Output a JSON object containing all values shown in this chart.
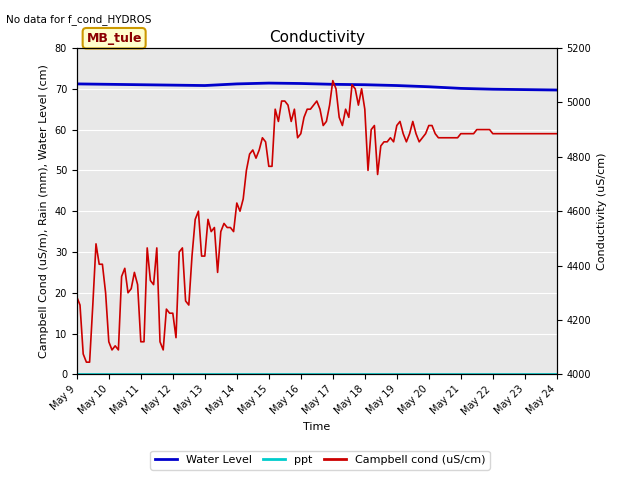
{
  "title": "Conductivity",
  "top_left_text": "No data for f_cond_HYDROS",
  "ylabel_left": "Campbell Cond (uS/m), Rain (mm), Water Level (cm)",
  "ylabel_right": "Conductivity (uS/cm)",
  "xlabel": "Time",
  "ylim_left": [
    0,
    80
  ],
  "ylim_right": [
    4000,
    5200
  ],
  "background_color": "#e8e8e8",
  "legend_box_text": "MB_tule",
  "legend_box_bg": "#ffffcc",
  "legend_box_border": "#cc9900",
  "x_ticks": [
    "May 9",
    "May 10",
    "May 11",
    "May 12",
    "May 13",
    "May 14",
    "May 15",
    "May 16",
    "May 17",
    "May 18",
    "May 19",
    "May 20",
    "May 21",
    "May 22",
    "May 23",
    "May 24"
  ],
  "water_level_color": "#0000cc",
  "ppt_color": "#00cccc",
  "campbell_cond_color": "#cc0000",
  "water_level_data_x": [
    0,
    1,
    2,
    3,
    4,
    5,
    6,
    7,
    8,
    9,
    10,
    11,
    12,
    13,
    14,
    15
  ],
  "water_level_data_y": [
    71.2,
    71.1,
    71.0,
    70.9,
    70.8,
    71.2,
    71.4,
    71.3,
    71.1,
    71.0,
    70.8,
    70.5,
    70.1,
    69.9,
    69.8,
    69.7
  ],
  "ppt_data_x": [
    0,
    1,
    2,
    3,
    4,
    5,
    6,
    7,
    8,
    9,
    10,
    11,
    12,
    13,
    14,
    15
  ],
  "ppt_data_y": [
    0,
    0,
    0,
    0,
    0,
    0,
    0,
    0,
    0,
    0,
    0,
    0,
    0,
    0,
    0,
    0
  ],
  "campbell_cond_x": [
    0.0,
    0.1,
    0.2,
    0.3,
    0.4,
    0.5,
    0.6,
    0.7,
    0.8,
    0.9,
    1.0,
    1.1,
    1.2,
    1.3,
    1.4,
    1.5,
    1.6,
    1.7,
    1.8,
    1.9,
    2.0,
    2.1,
    2.2,
    2.3,
    2.4,
    2.5,
    2.6,
    2.7,
    2.8,
    2.9,
    3.0,
    3.1,
    3.2,
    3.3,
    3.4,
    3.5,
    3.6,
    3.7,
    3.8,
    3.9,
    4.0,
    4.1,
    4.2,
    4.3,
    4.4,
    4.5,
    4.6,
    4.7,
    4.8,
    4.9,
    5.0,
    5.1,
    5.2,
    5.3,
    5.4,
    5.5,
    5.6,
    5.7,
    5.8,
    5.9,
    6.0,
    6.1,
    6.2,
    6.3,
    6.4,
    6.5,
    6.6,
    6.7,
    6.8,
    6.9,
    7.0,
    7.1,
    7.2,
    7.3,
    7.4,
    7.5,
    7.6,
    7.7,
    7.8,
    7.9,
    8.0,
    8.1,
    8.2,
    8.3,
    8.4,
    8.5,
    8.6,
    8.7,
    8.8,
    8.9,
    9.0,
    9.1,
    9.2,
    9.3,
    9.4,
    9.5,
    9.6,
    9.7,
    9.8,
    9.9,
    10.0,
    10.1,
    10.2,
    10.3,
    10.4,
    10.5,
    10.6,
    10.7,
    10.8,
    10.9,
    11.0,
    11.1,
    11.2,
    11.3,
    11.4,
    11.5,
    11.6,
    11.7,
    11.8,
    11.9,
    12.0,
    12.1,
    12.2,
    12.3,
    12.4,
    12.5,
    12.6,
    12.7,
    12.8,
    12.9,
    13.0,
    13.1,
    13.2,
    13.3,
    13.4,
    13.5,
    13.6,
    13.7,
    13.8,
    13.9,
    14.0,
    14.1,
    14.2,
    14.3,
    14.4,
    14.5,
    14.6,
    14.7,
    14.8,
    14.9,
    15.0
  ],
  "campbell_cond_y": [
    19,
    17,
    5,
    3,
    3,
    17,
    32,
    27,
    27,
    20,
    8,
    6,
    7,
    6,
    24,
    26,
    20,
    21,
    25,
    22,
    8,
    8,
    31,
    23,
    22,
    31,
    8,
    6,
    16,
    15,
    15,
    9,
    30,
    31,
    18,
    17,
    29,
    38,
    40,
    29,
    29,
    38,
    35,
    36,
    25,
    35,
    37,
    36,
    36,
    35,
    42,
    40,
    43,
    50,
    54,
    55,
    53,
    55,
    58,
    57,
    51,
    51,
    65,
    62,
    67,
    67,
    66,
    62,
    65,
    58,
    59,
    63,
    65,
    65,
    66,
    67,
    65,
    61,
    62,
    66,
    72,
    70,
    63,
    61,
    65,
    63,
    71,
    70,
    66,
    70,
    65,
    50,
    60,
    61,
    49,
    56,
    57,
    57,
    58,
    57,
    61,
    62,
    59,
    57,
    59,
    62,
    59,
    57,
    58,
    59,
    61,
    61,
    59,
    58,
    58,
    58,
    58,
    58,
    58,
    58,
    59,
    59,
    59,
    59,
    59,
    60,
    60,
    60,
    60,
    60,
    59,
    59,
    59,
    59,
    59,
    59,
    59,
    59,
    59,
    59,
    59,
    59,
    59,
    59,
    59,
    59,
    59,
    59,
    59,
    59,
    59
  ],
  "title_fontsize": 11,
  "axis_fontsize": 8,
  "tick_fontsize": 7,
  "legend_fontsize": 8
}
